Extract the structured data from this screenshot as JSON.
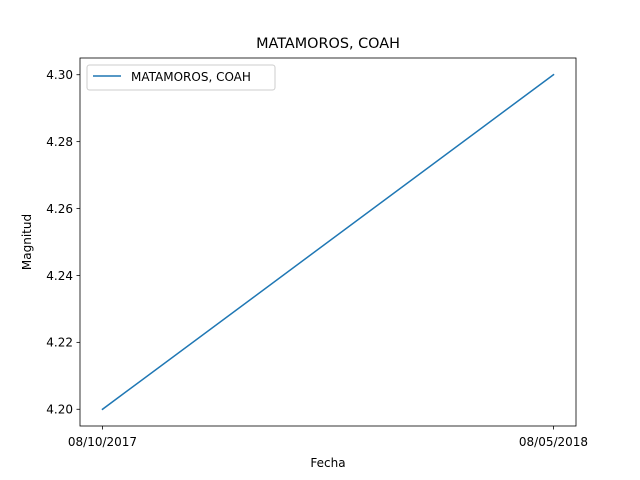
{
  "chart_data": {
    "type": "line",
    "title": "MATAMOROS, COAH",
    "xlabel": "Fecha",
    "ylabel": "Magnitud",
    "categories": [
      "08/10/2017",
      "08/05/2018"
    ],
    "series": [
      {
        "name": "MATAMOROS, COAH",
        "values": [
          4.2,
          4.3
        ],
        "color": "#1f77b4"
      }
    ],
    "ylim": [
      4.195,
      4.305
    ],
    "yticks": [
      4.2,
      4.22,
      4.24,
      4.26,
      4.28,
      4.3
    ],
    "ytick_labels": [
      "4.20",
      "4.22",
      "4.24",
      "4.26",
      "4.28",
      "4.30"
    ],
    "grid": false,
    "legend_position": "top-left"
  }
}
